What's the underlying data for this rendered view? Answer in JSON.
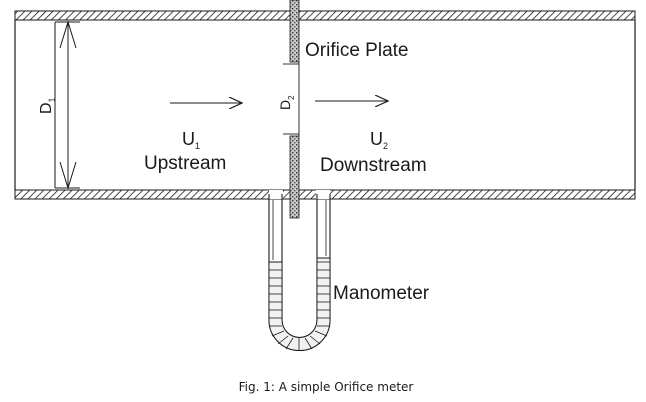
{
  "labels": {
    "d1": "D",
    "d1_sub": "1",
    "d2": "D",
    "d2_sub": "2",
    "orifice_plate": "Orifice Plate",
    "u1": "U",
    "u1_sub": "1",
    "upstream": "Upstream",
    "u2": "U",
    "u2_sub": "2",
    "downstream": "Downstream",
    "manometer": "Manometer"
  },
  "caption": "Fig. 1: A simple Orifice meter",
  "colors": {
    "line": "#1a1a1a",
    "plate_fill": "#9a9a9a",
    "wall_fill": "#ffffff"
  }
}
